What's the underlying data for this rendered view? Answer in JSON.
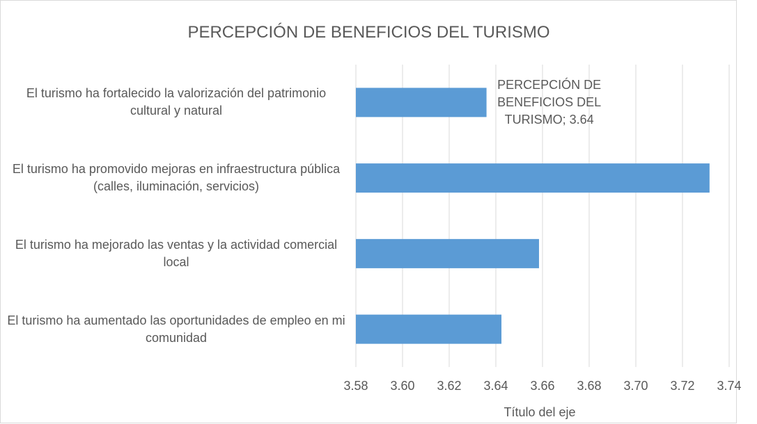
{
  "chart_data": {
    "type": "hbar",
    "title": "PERCEPCIÓN DE BENEFICIOS DEL TURISMO",
    "x_label": "Título del eje",
    "categories": [
      "El turismo ha fortalecido la valorización del patrimonio cultural y natural",
      "El turismo ha promovido mejoras en infraestructura pública (calles, iluminación, servicios)",
      "El turismo ha mejorado las ventas y la actividad comercial local",
      "El turismo ha aumentado las oportunidades de empleo en mi comunidad"
    ],
    "series": [
      {
        "name": "PERCEPCIÓN DE BENEFICIOS DEL TURISMO",
        "color": "#5b9bd5",
        "values": [
          3.636,
          3.7316,
          3.6585,
          3.6424
        ],
        "value_labels": [
          "PERCEPCIÓN DE BENEFICIOS DEL TURISMO; 3.64",
          null,
          null,
          null
        ]
      }
    ],
    "xlim": [
      3.58,
      3.74
    ],
    "xticks": [
      3.58,
      {
        "value": 3.6,
        "label": "3.60"
      },
      3.62,
      3.64,
      3.66,
      3.68,
      {
        "value": 3.7,
        "label": "3.70"
      },
      3.72,
      3.74
    ],
    "grid": true
  }
}
